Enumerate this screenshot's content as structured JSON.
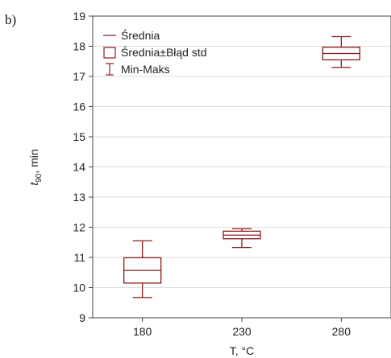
{
  "panel_label": "b)",
  "colors": {
    "series": "#8b1a1a",
    "grid": "#dddddd",
    "axis": "#444444",
    "text": "#222222"
  },
  "chart_data": {
    "type": "box",
    "x_label": "T, °C",
    "y_label_main": "t",
    "y_label_sub": "90",
    "y_label_rest": ", min",
    "ylim": [
      9,
      19
    ],
    "y_ticks": [
      "9",
      "10",
      "11",
      "12",
      "13",
      "14",
      "15",
      "16",
      "17",
      "18",
      "19"
    ],
    "grid": true,
    "legend_position": "top-left",
    "legend": [
      "Średnia",
      "Średnia±Błąd std",
      "Min-Maks"
    ],
    "categories": [
      "180",
      "230",
      "280"
    ],
    "boxes": [
      {
        "category": "180",
        "mean": 10.57,
        "box_low": 10.15,
        "box_high": 10.99,
        "min": 9.67,
        "max": 11.55
      },
      {
        "category": "230",
        "mean": 11.74,
        "box_low": 11.62,
        "box_high": 11.87,
        "min": 11.33,
        "max": 11.95
      },
      {
        "category": "280",
        "mean": 17.76,
        "box_low": 17.55,
        "box_high": 17.97,
        "min": 17.3,
        "max": 18.32
      }
    ]
  }
}
